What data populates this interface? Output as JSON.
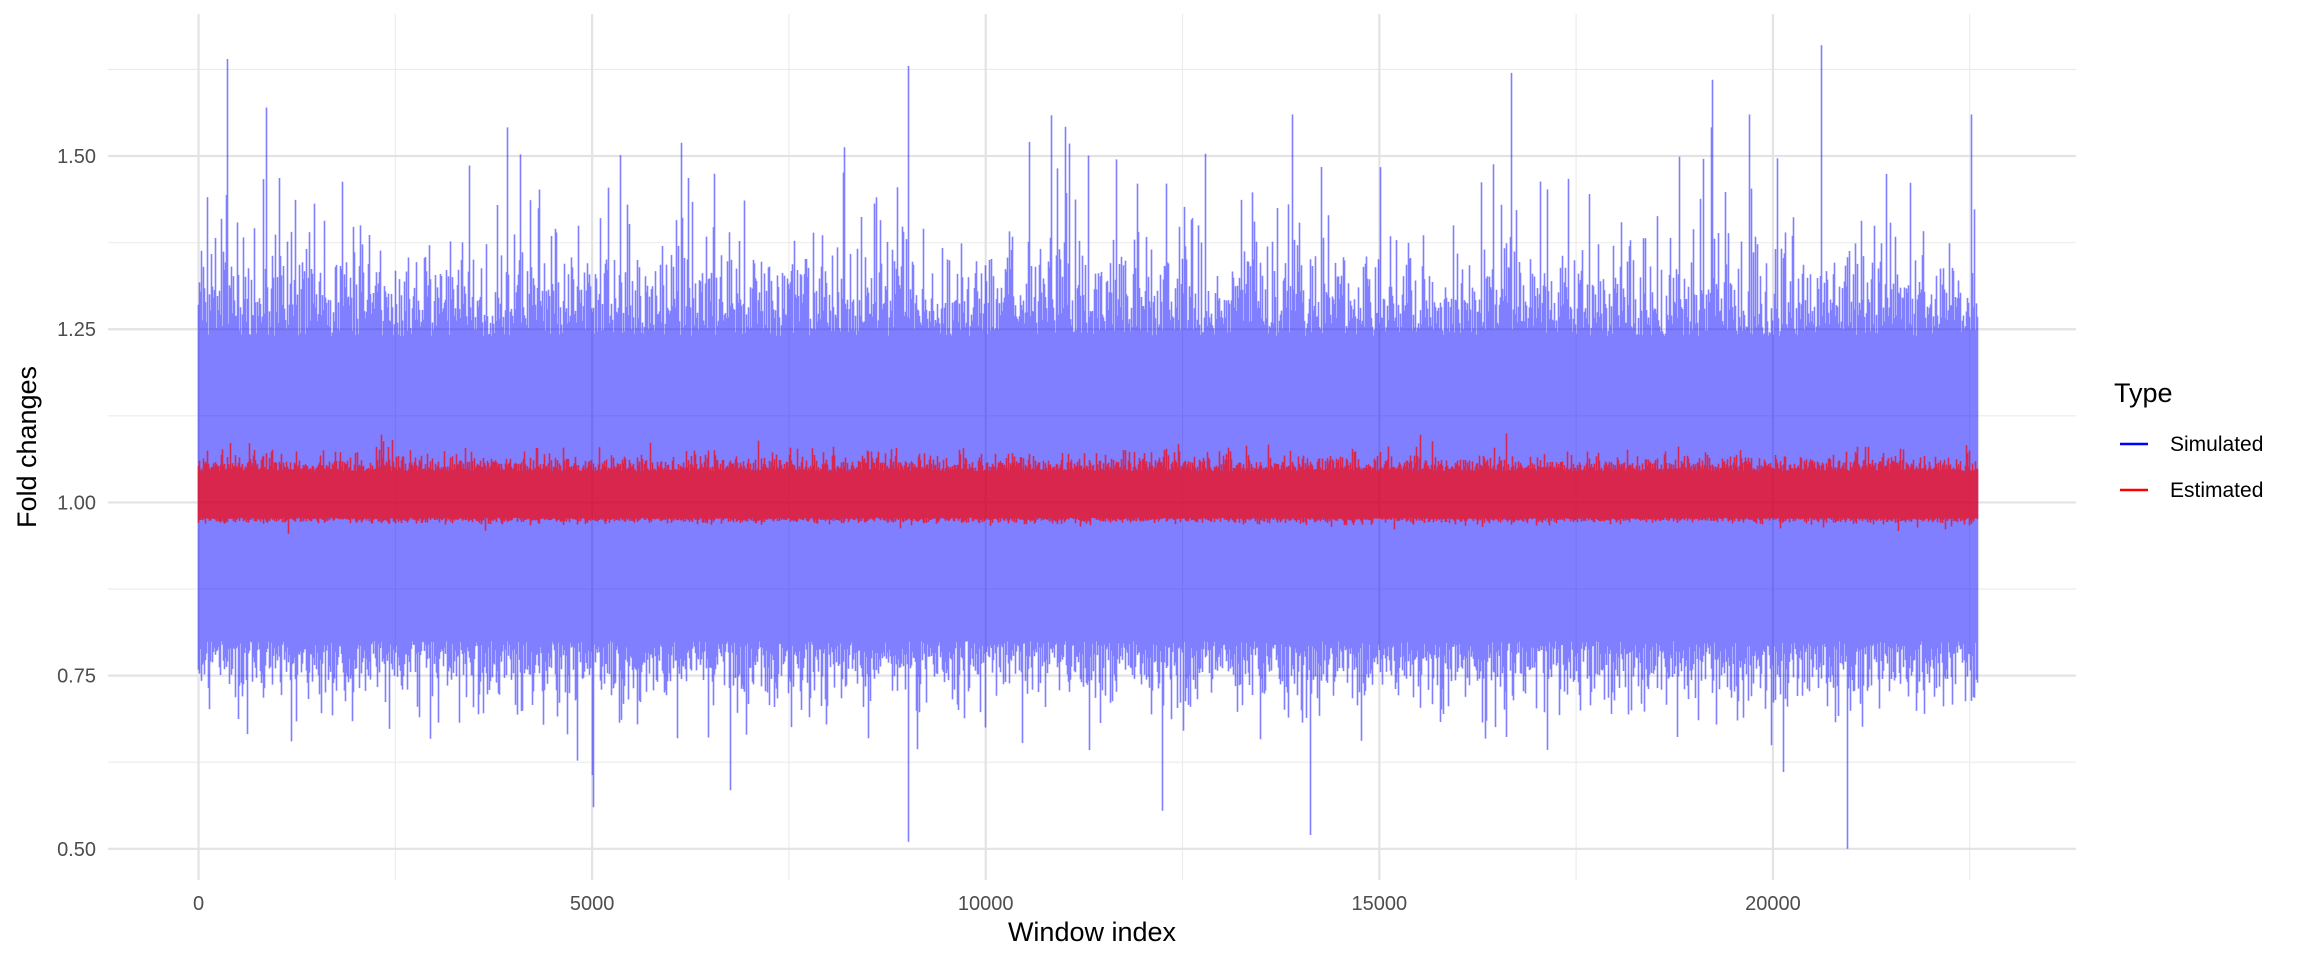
{
  "chart_data": {
    "type": "line",
    "title": "",
    "xlabel": "Window index",
    "ylabel": "Fold changes",
    "xlim": [
      -1150,
      23850
    ],
    "ylim": [
      0.455,
      1.705
    ],
    "x_ticks": [
      0,
      5000,
      10000,
      15000,
      20000
    ],
    "y_ticks": [
      0.5,
      0.75,
      1.0,
      1.25,
      1.5
    ],
    "x_tick_labels": [
      "0",
      "5000",
      "10000",
      "15000",
      "20000"
    ],
    "y_tick_labels": [
      "0.50",
      "0.75",
      "1.00",
      "1.25",
      "1.50"
    ],
    "grid": true,
    "legend": {
      "title": "Type",
      "position": "right",
      "entries": [
        {
          "label": "Simulated",
          "color": "#0000ff"
        },
        {
          "label": "Estimated",
          "color": "#ff0000"
        }
      ]
    },
    "series": [
      {
        "name": "Simulated",
        "color": "#0000ff",
        "opacity": 0.5,
        "x_range": [
          0,
          22600
        ],
        "n_points": 22600,
        "typical_band": [
          0.75,
          1.28
        ],
        "min": 0.5,
        "max": 1.66,
        "notable_peaks": [
          {
            "x": 380,
            "y": 1.64
          },
          {
            "x": 870,
            "y": 1.57
          },
          {
            "x": 9020,
            "y": 1.63
          },
          {
            "x": 16680,
            "y": 1.62
          },
          {
            "x": 19240,
            "y": 1.61
          },
          {
            "x": 20620,
            "y": 1.66
          }
        ],
        "notable_troughs": [
          {
            "x": 9020,
            "y": 0.51
          },
          {
            "x": 14130,
            "y": 0.52
          },
          {
            "x": 20950,
            "y": 0.5
          },
          {
            "x": 5020,
            "y": 0.56
          }
        ]
      },
      {
        "name": "Estimated",
        "color": "#ff0000",
        "opacity": 0.7,
        "x_range": [
          0,
          22600
        ],
        "n_points": 22600,
        "typical_band": [
          0.975,
          1.06
        ],
        "min": 0.95,
        "max": 1.11
      }
    ]
  }
}
